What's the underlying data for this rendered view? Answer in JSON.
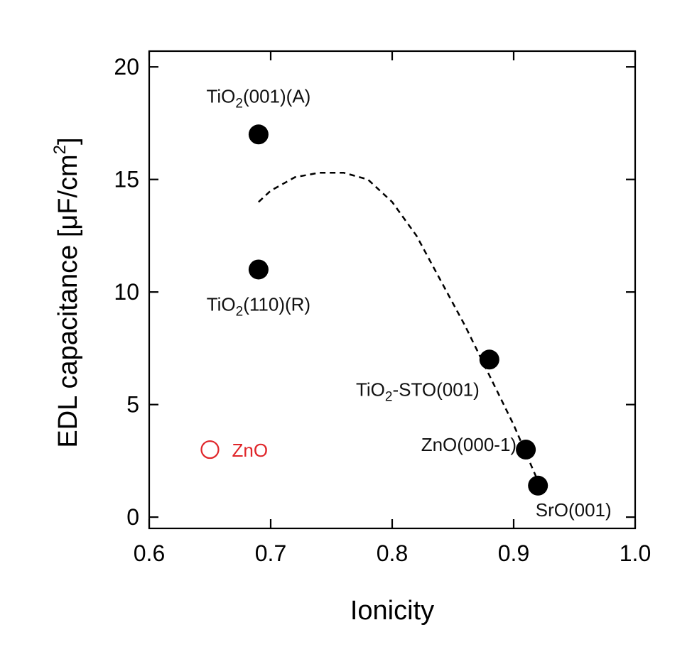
{
  "chart_data": {
    "type": "scatter",
    "xlabel": "Ionicity",
    "ylabel": "EDL capacitance [μF/cm²]",
    "xlim": [
      0.6,
      1.0
    ],
    "ylim": [
      0,
      20
    ],
    "x_ticks": [
      "0.6",
      "0.7",
      "0.8",
      "0.9",
      "1.0"
    ],
    "y_ticks": [
      "0",
      "5",
      "10",
      "15",
      "20"
    ],
    "grid": false,
    "points": [
      {
        "x": 0.69,
        "y": 17.0,
        "label": "TiO2(001)(A)",
        "label_main": "TiO",
        "label_sub": "2",
        "label_rest": "(001)(A)",
        "style": "filled",
        "color": "#000000"
      },
      {
        "x": 0.69,
        "y": 11.0,
        "label": "TiO2(110)(R)",
        "label_main": "TiO",
        "label_sub": "2",
        "label_rest": "(110)(R)",
        "style": "filled",
        "color": "#000000"
      },
      {
        "x": 0.88,
        "y": 7.0,
        "label": "TiO2-STO(001)",
        "label_main": "TiO",
        "label_sub": "2",
        "label_rest": "-STO(001)",
        "style": "filled",
        "color": "#000000"
      },
      {
        "x": 0.91,
        "y": 3.0,
        "label": "ZnO(000-1)",
        "label_main": "ZnO(000-1)",
        "label_sub": "",
        "label_rest": "",
        "style": "filled",
        "color": "#000000"
      },
      {
        "x": 0.92,
        "y": 1.4,
        "label": "SrO(001)",
        "label_main": "SrO(001)",
        "label_sub": "",
        "label_rest": "",
        "style": "filled",
        "color": "#000000"
      },
      {
        "x": 0.65,
        "y": 3.0,
        "label": "ZnO",
        "label_main": "ZnO",
        "label_sub": "",
        "label_rest": "",
        "style": "open",
        "color": "#e0262a"
      }
    ],
    "trend_line": {
      "style": "dashed",
      "x": [
        0.69,
        0.7,
        0.72,
        0.74,
        0.76,
        0.78,
        0.8,
        0.82,
        0.84,
        0.86,
        0.88,
        0.9,
        0.92
      ],
      "y": [
        14.0,
        14.5,
        15.1,
        15.3,
        15.3,
        15.0,
        14.0,
        12.5,
        10.5,
        8.5,
        6.3,
        4.1,
        1.6
      ]
    }
  }
}
